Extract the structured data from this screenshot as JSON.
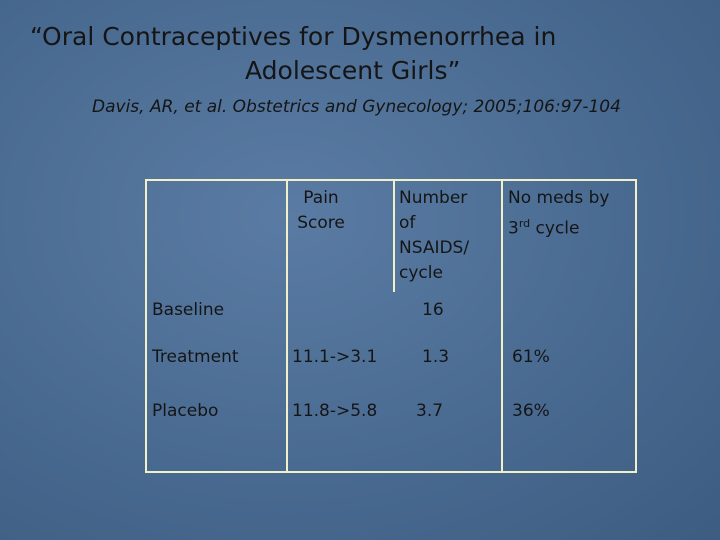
{
  "title": {
    "lines": [
      "“Oral Contraceptives for Dysmenorrhea in",
      "Adolescent Girls”"
    ]
  },
  "citation": "Davis, AR, et al. Obstetrics and Gynecology; 2005;106:97-104",
  "table": {
    "header": [
      {
        "lines": [
          "Pain",
          "Score"
        ]
      },
      {
        "lines": [
          "Number",
          "of",
          "NSAIDS/",
          "cycle"
        ]
      },
      {
        "lines": [
          "No meds by"
        ],
        "base": "3",
        "sup": "rd",
        "tail": "cycle"
      }
    ],
    "rows": [
      {
        "label": "Baseline",
        "nsaids": "16"
      },
      {
        "label": "Treatment",
        "pain": "11.1->3.1",
        "nsaids": "1.3",
        "nomeds": "61%"
      },
      {
        "label": "Placebo",
        "pain": "11.8->5.8",
        "nsaids": "3.7",
        "nomeds": "36%"
      }
    ]
  }
}
